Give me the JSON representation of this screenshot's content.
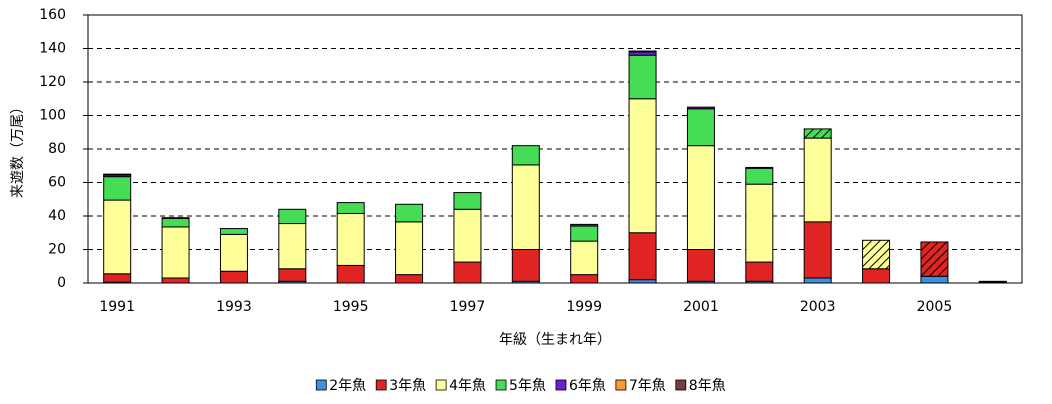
{
  "chart_data": {
    "type": "stacked_bar",
    "x_label": "年級（生まれ年）",
    "y_label": "来遊数（万尾）",
    "categories": [
      "1991",
      null,
      "1993",
      null,
      "1995",
      null,
      "1997",
      null,
      "1999",
      null,
      "2001",
      null,
      "2003",
      null,
      "2005",
      null
    ],
    "ylim": [
      0,
      160
    ],
    "yticks": [
      0,
      20,
      40,
      60,
      80,
      100,
      120,
      140,
      160
    ],
    "grid": true,
    "legend": "bottom",
    "series": [
      {
        "name": "2年魚",
        "color": "#3f8fe0",
        "values": [
          0.5,
          0,
          0,
          1,
          0,
          0,
          0,
          1,
          0,
          2,
          1,
          1,
          3,
          0,
          4,
          0.5
        ],
        "hatched": []
      },
      {
        "name": "3年魚",
        "color": "#e02424",
        "values": [
          5,
          3,
          7,
          7.5,
          10.5,
          5,
          12.5,
          19,
          5,
          28,
          19,
          11.5,
          33.5,
          8.5,
          20.5,
          0.5
        ],
        "hatched": [
          14
        ]
      },
      {
        "name": "4年魚",
        "color": "#ffff99",
        "values": [
          44,
          30.5,
          22,
          27,
          31,
          31.5,
          31.5,
          50.5,
          20,
          80,
          62,
          46.5,
          50,
          17,
          0,
          0
        ],
        "hatched": [
          13
        ]
      },
      {
        "name": "5年魚",
        "color": "#44dd55",
        "values": [
          14,
          5,
          3.5,
          8.5,
          6.5,
          10.5,
          10,
          11.5,
          9,
          26,
          22,
          9.5,
          5.5,
          0,
          0,
          0
        ],
        "hatched": [
          12
        ]
      },
      {
        "name": "6年魚",
        "color": "#6a1fd0",
        "values": [
          1,
          0.5,
          0,
          0,
          0,
          0,
          0,
          0,
          1,
          2,
          1,
          0.5,
          0,
          0,
          0,
          0
        ],
        "hatched": []
      },
      {
        "name": "7年魚",
        "color": "#ff9933",
        "values": [
          0,
          0,
          0,
          0,
          0,
          0,
          0,
          0,
          0,
          0,
          0,
          0,
          0,
          0,
          0,
          0
        ],
        "hatched": []
      },
      {
        "name": "8年魚",
        "color": "#7a3b3b",
        "values": [
          0.5,
          0,
          0,
          0,
          0,
          0,
          0,
          0,
          0,
          0.5,
          0,
          0,
          0,
          0,
          0,
          0
        ],
        "hatched": []
      }
    ]
  }
}
